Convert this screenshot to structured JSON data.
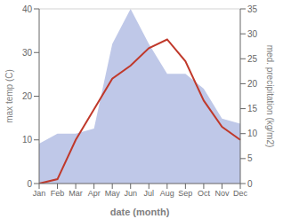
{
  "chart_data": {
    "type": "line",
    "categories": [
      "Jan",
      "Feb",
      "Mar",
      "Apr",
      "May",
      "Jun",
      "Jul",
      "Aug",
      "Sep",
      "Oct",
      "Nov",
      "Dec"
    ],
    "series": [
      {
        "type": "area",
        "axis": "y2",
        "color": "#bfc8e8",
        "values": [
          8,
          10,
          10,
          11,
          28,
          35,
          28,
          22,
          22,
          19,
          13,
          12
        ]
      },
      {
        "type": "line",
        "color": "#c0392b",
        "values": [
          0,
          1,
          10,
          17,
          24,
          27,
          31,
          33,
          28,
          19,
          13,
          10
        ]
      }
    ],
    "xlabel": "date (month)",
    "ylabel": "max temp (C)",
    "y2label": "med. precipitation (kg/m2)",
    "ylim": [
      0,
      40
    ],
    "yticks": [
      0,
      10,
      20,
      30,
      40
    ],
    "y2lim": [
      0,
      35
    ],
    "y2ticks": [
      0,
      5,
      10,
      15,
      20,
      25,
      30,
      35
    ],
    "grid": false
  }
}
